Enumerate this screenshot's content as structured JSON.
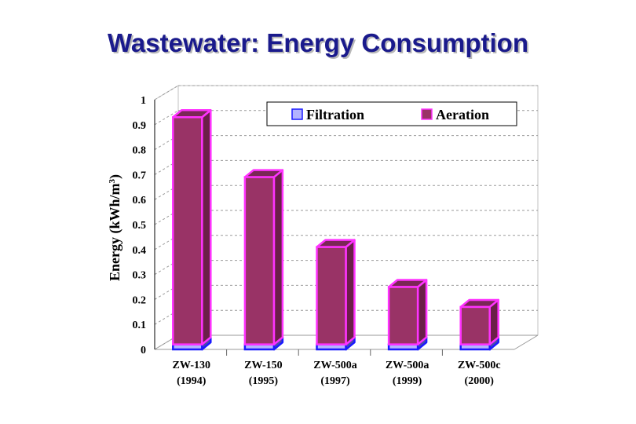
{
  "title": "Wastewater: Energy Consumption",
  "colors": {
    "title": "#1a1a8c",
    "aeration_face": "#993366",
    "aeration_side": "#6b1f48",
    "aeration_top": "#7a2755",
    "aeration_edge": "#ff33ff",
    "filtration_face": "#b3b3ff",
    "filtration_side": "#4d4da6",
    "filtration_edge": "#1a1aff",
    "grid": "#9a9a9a"
  },
  "chart_data": {
    "type": "bar",
    "stacked": true,
    "three_d": true,
    "categories": [
      "ZW-130",
      "ZW-150",
      "ZW-500a",
      "ZW-500a",
      "ZW-500c"
    ],
    "category_years": [
      "(1994)",
      "(1995)",
      "(1997)",
      "(1999)",
      "(2000)"
    ],
    "series": [
      {
        "name": "Filtration",
        "values": [
          0.02,
          0.02,
          0.02,
          0.02,
          0.02
        ]
      },
      {
        "name": "Aeration",
        "values": [
          0.91,
          0.67,
          0.39,
          0.23,
          0.15
        ]
      }
    ],
    "yticks": [
      "0",
      "0.1",
      "0.2",
      "0.3",
      "0.4",
      "0.5",
      "0.6",
      "0.7",
      "0.8",
      "0.9",
      "1"
    ],
    "ylabel_main": "Energy (kWh/m",
    "ylabel_sup": "3",
    "ylabel_close": ")",
    "ylim": [
      0,
      1
    ],
    "legend_position": "top-right"
  }
}
